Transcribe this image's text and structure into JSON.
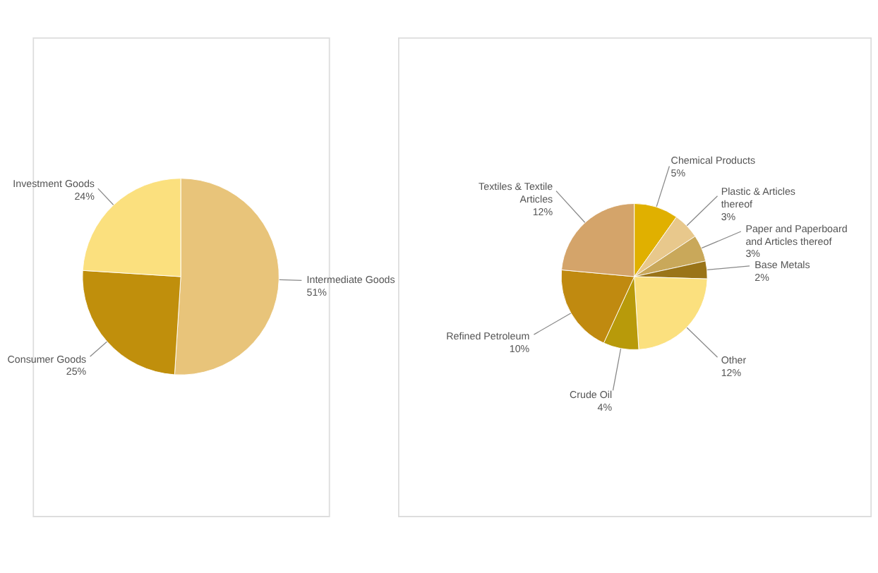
{
  "chart_data": [
    {
      "type": "pie",
      "categories": [
        "Intermediate Goods",
        "Consumer Goods",
        "Investment Goods"
      ],
      "values": [
        51,
        25,
        24
      ],
      "colors": [
        "#e8c47a",
        "#c08f0c",
        "#fbe07e"
      ],
      "value_labels": [
        "51%",
        "25%",
        "24%"
      ],
      "legend": false
    },
    {
      "type": "pie",
      "categories": [
        "Chemical Products",
        "Plastic & Articles thereof",
        "Paper and Paperboard and Articles thereof",
        "Base Metals",
        "Other",
        "Crude Oil",
        "Refined Petroleum",
        "Textiles & Textile Articles"
      ],
      "values": [
        5,
        3,
        3,
        2,
        12,
        4,
        10,
        12
      ],
      "colors": [
        "#e0b000",
        "#e8c88c",
        "#c9a85a",
        "#9a7418",
        "#fbe07e",
        "#b89a0a",
        "#c08a10",
        "#d4a46a"
      ],
      "value_labels": [
        "5%",
        "3%",
        "3%",
        "2%",
        "12%",
        "4%",
        "10%",
        "12%"
      ],
      "legend": false
    }
  ]
}
